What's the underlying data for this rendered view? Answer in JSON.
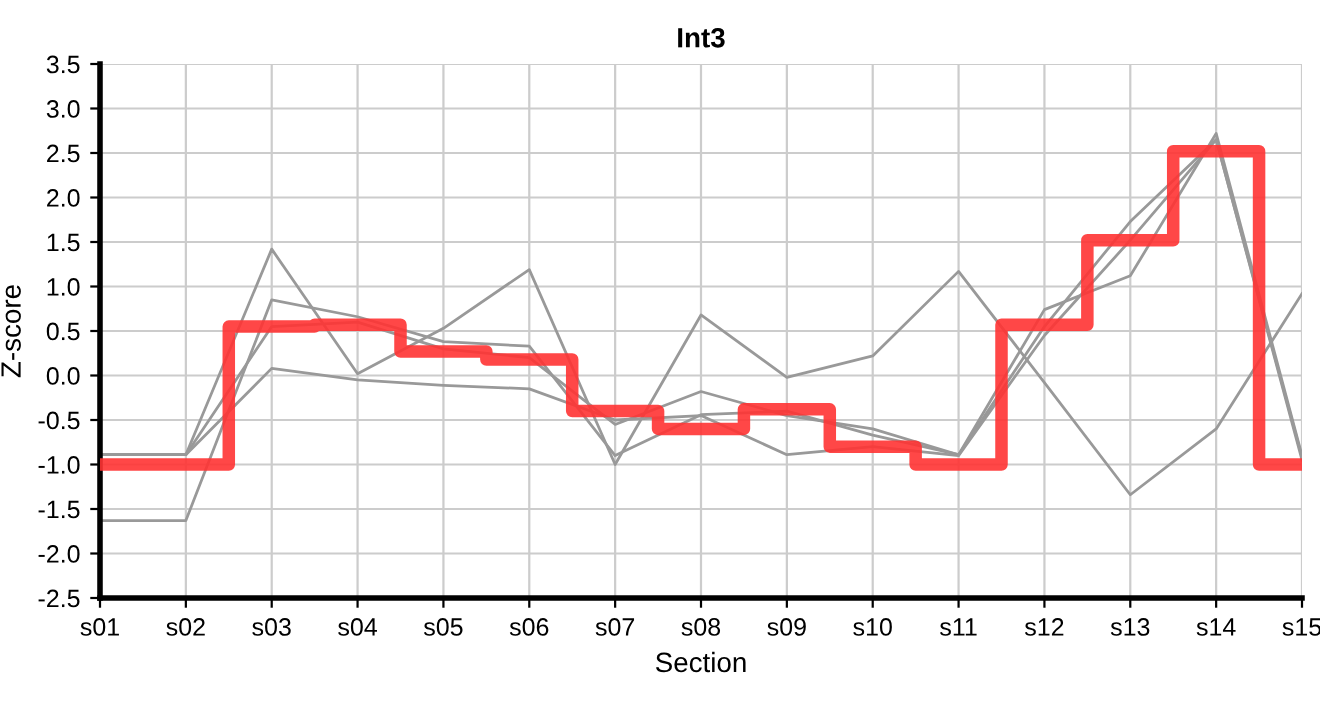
{
  "chart_data": {
    "type": "line",
    "title": "Int3",
    "xlabel": "Section",
    "ylabel": "Z-score",
    "categories": [
      "s01",
      "s02",
      "s03",
      "s04",
      "s05",
      "s06",
      "s07",
      "s08",
      "s09",
      "s10",
      "s11",
      "s12",
      "s13",
      "s14",
      "s15"
    ],
    "series": [
      {
        "color": "#999999",
        "values": [
          -0.89,
          -0.89,
          1.42,
          0.02,
          0.53,
          1.19,
          -1.0,
          0.68,
          -0.02,
          0.22,
          1.17,
          -0.08,
          -1.34,
          -0.6,
          0.92
        ]
      },
      {
        "color": "#999999",
        "values": [
          -1.63,
          -1.63,
          0.85,
          0.66,
          0.38,
          0.33,
          -0.9,
          -0.44,
          -0.4,
          -0.67,
          -0.89,
          0.74,
          1.12,
          2.72,
          -0.9
        ]
      },
      {
        "color": "#999999",
        "values": [
          -0.89,
          -0.89,
          0.55,
          0.6,
          0.3,
          0.2,
          -0.55,
          -0.18,
          -0.45,
          -0.6,
          -0.89,
          0.55,
          1.73,
          2.65,
          -0.95
        ]
      },
      {
        "color": "#999999",
        "values": [
          -0.89,
          -0.89,
          0.08,
          -0.05,
          -0.11,
          -0.15,
          -0.5,
          -0.45,
          -0.89,
          -0.8,
          -0.9,
          0.45,
          1.52,
          2.65,
          -0.92
        ]
      },
      {
        "type": "step",
        "color": "#ff3333",
        "values": [
          -1.0,
          -1.0,
          0.55,
          0.57,
          0.27,
          0.18,
          -0.4,
          -0.6,
          -0.38,
          -0.8,
          -1.0,
          0.57,
          1.52,
          2.52,
          -1.0
        ]
      }
    ],
    "ylim": [
      -2.5,
      3.5
    ],
    "yticks": [
      {
        "value": -2.5,
        "label": "-2.5"
      },
      {
        "value": -2,
        "label": "-2.0"
      },
      {
        "value": -1.5,
        "label": "-1.5"
      },
      {
        "value": -1,
        "label": "-1.0"
      },
      {
        "value": -0.5,
        "label": "-0.5"
      },
      {
        "value": 0,
        "label": "0.0"
      },
      {
        "value": 0.5,
        "label": "0.5"
      },
      {
        "value": 1,
        "label": "1.0"
      },
      {
        "value": 1.5,
        "label": "1.5"
      },
      {
        "value": 2,
        "label": "2.0"
      },
      {
        "value": 2.5,
        "label": "2.5"
      },
      {
        "value": 3,
        "label": "3.0"
      },
      {
        "value": 3.5,
        "label": "3.5"
      }
    ],
    "grid": true,
    "legend": false
  }
}
